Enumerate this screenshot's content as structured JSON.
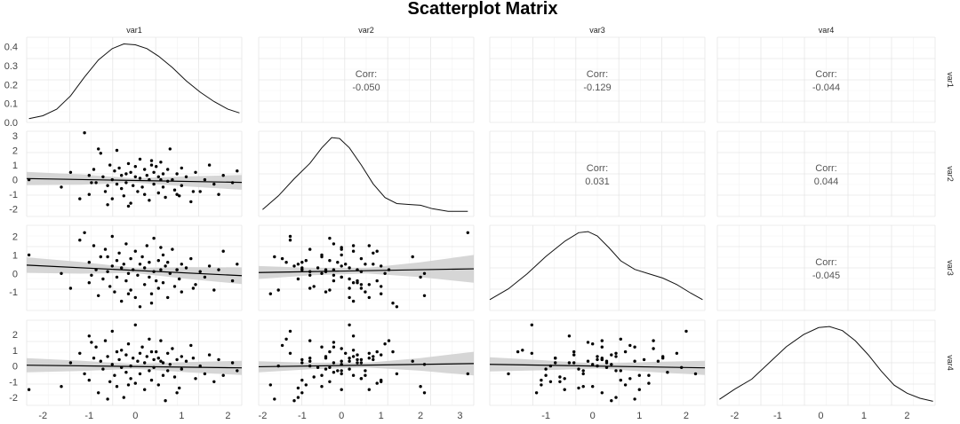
{
  "chart_data": {
    "type": "scatter",
    "title": "Scatterplot Matrix",
    "variables": [
      "var1",
      "var2",
      "var3",
      "var4"
    ],
    "corr_label": "Corr:",
    "correlations": {
      "var1_var2": "-0.050",
      "var1_var3": "-0.129",
      "var1_var4": "-0.044",
      "var2_var3": "0.031",
      "var2_var4": "0.044",
      "var3_var4": "-0.045"
    },
    "x_ranges": {
      "var1": [
        -2.35,
        2.3
      ],
      "var2": [
        -2.1,
        3.35
      ],
      "var3": [
        -2.2,
        2.4
      ],
      "var4": [
        -2.4,
        2.65
      ]
    },
    "y_ranges": {
      "var2": [
        -2.5,
        3.3
      ],
      "var3": [
        -2.0,
        2.6
      ],
      "var4": [
        -2.5,
        2.9
      ]
    },
    "x_ticks": {
      "var1": [
        -2,
        -1,
        0,
        1,
        2
      ],
      "var2": [
        -2,
        -1,
        0,
        1,
        2,
        3
      ],
      "var3": [
        -1,
        0,
        1,
        2
      ],
      "var4": [
        -2,
        -1,
        0,
        1,
        2
      ]
    },
    "y_ticks": {
      "density_row1": [
        "0.4",
        "0.3",
        "0.2",
        "0.1",
        "0.0"
      ],
      "var2": [
        "3",
        "2",
        "1",
        "0",
        "-1",
        "-2"
      ],
      "var3": [
        "2",
        "1",
        "0",
        "-1"
      ],
      "var4": [
        "2",
        "1",
        "0",
        "-1",
        "-2"
      ]
    },
    "density_var1_y_range": [
      0,
      0.45
    ],
    "densities": {
      "var1": [
        [
          -2.3,
          0.02
        ],
        [
          -2.0,
          0.035
        ],
        [
          -1.7,
          0.07
        ],
        [
          -1.4,
          0.14
        ],
        [
          -1.1,
          0.24
        ],
        [
          -0.8,
          0.33
        ],
        [
          -0.5,
          0.39
        ],
        [
          -0.25,
          0.415
        ],
        [
          0.0,
          0.41
        ],
        [
          0.25,
          0.39
        ],
        [
          0.5,
          0.35
        ],
        [
          0.8,
          0.29
        ],
        [
          1.1,
          0.22
        ],
        [
          1.4,
          0.16
        ],
        [
          1.7,
          0.11
        ],
        [
          2.0,
          0.07
        ],
        [
          2.25,
          0.05
        ]
      ],
      "var2": [
        [
          -2.0,
          0.04
        ],
        [
          -1.6,
          0.12
        ],
        [
          -1.2,
          0.22
        ],
        [
          -0.8,
          0.31
        ],
        [
          -0.5,
          0.4
        ],
        [
          -0.25,
          0.46
        ],
        [
          -0.05,
          0.455
        ],
        [
          0.2,
          0.4
        ],
        [
          0.5,
          0.3
        ],
        [
          0.8,
          0.19
        ],
        [
          1.1,
          0.11
        ],
        [
          1.4,
          0.075
        ],
        [
          1.7,
          0.07
        ],
        [
          2.0,
          0.065
        ],
        [
          2.3,
          0.045
        ],
        [
          2.7,
          0.03
        ],
        [
          3.2,
          0.03
        ]
      ],
      "var3": [
        [
          -2.2,
          0.05
        ],
        [
          -1.8,
          0.1
        ],
        [
          -1.4,
          0.17
        ],
        [
          -1.0,
          0.25
        ],
        [
          -0.6,
          0.32
        ],
        [
          -0.3,
          0.36
        ],
        [
          -0.1,
          0.365
        ],
        [
          0.1,
          0.345
        ],
        [
          0.35,
          0.29
        ],
        [
          0.6,
          0.23
        ],
        [
          0.9,
          0.19
        ],
        [
          1.2,
          0.17
        ],
        [
          1.5,
          0.15
        ],
        [
          1.8,
          0.12
        ],
        [
          2.1,
          0.08
        ],
        [
          2.35,
          0.05
        ]
      ],
      "var4": [
        [
          -2.35,
          0.03
        ],
        [
          -2.0,
          0.08
        ],
        [
          -1.6,
          0.13
        ],
        [
          -1.2,
          0.21
        ],
        [
          -0.8,
          0.29
        ],
        [
          -0.4,
          0.35
        ],
        [
          -0.05,
          0.385
        ],
        [
          0.2,
          0.39
        ],
        [
          0.5,
          0.37
        ],
        [
          0.8,
          0.32
        ],
        [
          1.1,
          0.25
        ],
        [
          1.4,
          0.17
        ],
        [
          1.7,
          0.1
        ],
        [
          2.0,
          0.06
        ],
        [
          2.3,
          0.035
        ],
        [
          2.6,
          0.02
        ]
      ]
    },
    "regressions": {
      "var2_vs_var1": {
        "x": [
          -2.35,
          2.3
        ],
        "y": [
          0.08,
          -0.18
        ],
        "band": [
          0.45,
          0.35,
          0.15,
          0.35,
          0.5
        ]
      },
      "var3_vs_var1": {
        "x": [
          -2.35,
          2.3
        ],
        "y": [
          0.45,
          -0.12
        ],
        "band": [
          0.42,
          0.32,
          0.14,
          0.32,
          0.45
        ]
      },
      "var4_vs_var1": {
        "x": [
          -2.35,
          2.3
        ],
        "y": [
          0.05,
          -0.12
        ],
        "band": [
          0.45,
          0.33,
          0.15,
          0.33,
          0.45
        ]
      },
      "var3_vs_var2": {
        "x": [
          -2.1,
          3.35
        ],
        "y": [
          0.05,
          0.25
        ],
        "band": [
          0.35,
          0.2,
          0.15,
          0.4,
          0.75
        ]
      },
      "var4_vs_var2": {
        "x": [
          -2.1,
          3.35
        ],
        "y": [
          -0.05,
          0.15
        ],
        "band": [
          0.35,
          0.2,
          0.15,
          0.4,
          0.75
        ]
      },
      "var4_vs_var3": {
        "x": [
          -2.2,
          2.4
        ],
        "y": [
          0.1,
          -0.12
        ],
        "band": [
          0.45,
          0.32,
          0.15,
          0.32,
          0.45
        ]
      }
    },
    "points": {
      "var1": [
        -2.3,
        -1.6,
        -1.4,
        -1.2,
        -1.1,
        -1.0,
        -1.0,
        -0.9,
        -0.85,
        -0.8,
        -0.75,
        -0.7,
        -0.65,
        -0.6,
        -0.55,
        -0.5,
        -0.5,
        -0.45,
        -0.4,
        -0.4,
        -0.35,
        -0.3,
        -0.3,
        -0.25,
        -0.2,
        -0.2,
        -0.15,
        -0.1,
        -0.1,
        -0.05,
        0.0,
        0.0,
        0.05,
        0.1,
        0.1,
        0.15,
        0.2,
        0.2,
        0.25,
        0.3,
        0.3,
        0.35,
        0.4,
        0.4,
        0.45,
        0.5,
        0.5,
        0.55,
        0.6,
        0.6,
        0.65,
        0.7,
        0.7,
        0.75,
        0.8,
        0.85,
        0.9,
        0.95,
        1.0,
        1.0,
        1.1,
        1.2,
        1.3,
        1.4,
        1.5,
        1.6,
        1.7,
        1.8,
        1.9,
        2.1,
        2.2,
        -0.95,
        -0.6,
        0.35,
        0.9,
        1.25,
        -0.15,
        0.55
      ],
      "var2": [
        0.0,
        -0.5,
        0.5,
        -1.3,
        3.2,
        0.3,
        -1.0,
        0.7,
        -0.2,
        2.1,
        1.8,
        0.2,
        -0.8,
        -0.4,
        1.0,
        0.0,
        -1.3,
        0.6,
        -0.3,
        2.0,
        0.8,
        -0.6,
        0.3,
        -1.1,
        0.4,
        -0.2,
        1.1,
        -1.6,
        0.5,
        -0.4,
        0.2,
        0.9,
        -0.8,
        0.1,
        1.4,
        -0.5,
        0.7,
        -1.0,
        0.3,
        0.0,
        -1.4,
        1.0,
        0.5,
        -0.3,
        0.9,
        -0.9,
        0.2,
        1.2,
        -0.5,
        0.4,
        -1.2,
        0.7,
        -0.1,
        2.1,
        0.0,
        -0.7,
        0.4,
        -1.1,
        0.8,
        -0.4,
        0.2,
        -1.5,
        0.5,
        -0.8,
        0.0,
        1.0,
        -0.3,
        -1.0,
        0.3,
        -0.2,
        0.6,
        -0.2,
        -1.7,
        1.3,
        -1.0,
        -0.8,
        -1.8,
        0.0
      ],
      "var3": [
        1.0,
        0.0,
        -0.8,
        1.8,
        2.2,
        -0.5,
        0.6,
        1.5,
        0.2,
        -1.2,
        0.9,
        -0.3,
        1.3,
        0.1,
        -0.7,
        0.4,
        2.0,
        -1.0,
        0.7,
        -0.2,
        1.1,
        0.3,
        -1.5,
        0.5,
        -0.4,
        1.6,
        0.0,
        -0.9,
        0.8,
        0.2,
        -1.3,
        1.2,
        -0.1,
        0.5,
        -1.8,
        0.9,
        -0.6,
        0.3,
        1.5,
        -0.2,
        0.6,
        -1.1,
        0.1,
        1.9,
        -0.4,
        0.7,
        -0.8,
        0.2,
        1.0,
        -0.5,
        0.4,
        -1.3,
        0.6,
        0.0,
        1.3,
        -0.7,
        0.2,
        -0.3,
        0.5,
        -1.0,
        0.3,
        0.8,
        -0.6,
        0.1,
        -0.2,
        0.4,
        -0.9,
        0.2,
        1.2,
        -0.4,
        0.5,
        -0.1,
        0.9,
        -1.6,
        0.2,
        -0.8,
        -1.1,
        1.4
      ],
      "var4": [
        -1.5,
        -1.3,
        0.2,
        0.8,
        -0.5,
        1.9,
        -0.9,
        0.5,
        1.2,
        -1.7,
        0.3,
        -0.2,
        1.6,
        0.6,
        -1.0,
        0.1,
        2.2,
        -0.6,
        0.9,
        -1.3,
        0.4,
        -0.1,
        1.0,
        -2.0,
        0.7,
        -0.4,
        1.4,
        0.0,
        -0.8,
        0.5,
        2.6,
        -1.1,
        0.3,
        0.8,
        -0.5,
        1.2,
        -1.5,
        0.2,
        0.6,
        -0.3,
        1.7,
        -0.9,
        0.4,
        -0.1,
        0.9,
        -1.2,
        0.5,
        1.6,
        -0.6,
        0.2,
        -2.2,
        0.8,
        -0.3,
        0.1,
        1.1,
        -0.7,
        0.4,
        -1.4,
        0.6,
        -0.2,
        0.3,
        1.3,
        -0.8,
        0.0,
        -0.5,
        0.7,
        -1.0,
        0.4,
        -0.6,
        0.2,
        -0.3,
        1.5,
        -2.1,
        0.9,
        -1.7,
        0.5,
        -1.2,
        0.3
      ]
    }
  }
}
